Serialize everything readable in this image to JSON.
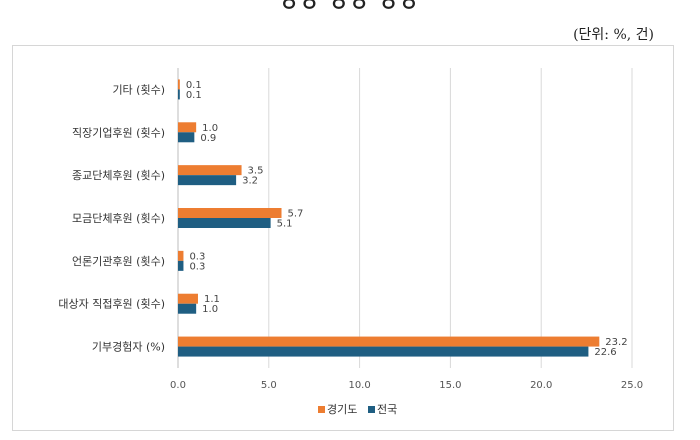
{
  "unit_label": "(단위: %, 건)",
  "colors": {
    "gyeonggi": "#ED7D31",
    "national": "#1F5E82"
  },
  "chart_data": {
    "type": "bar",
    "orientation": "horizontal",
    "title": "",
    "categories": [
      "기타 (횟수)",
      "직장기업후원 (횟수)",
      "종교단체후원 (횟수)",
      "모금단체후원 (횟수)",
      "언론기관후원 (횟수)",
      "대상자 직접후원 (횟수)",
      "기부경험자 (%)"
    ],
    "series": [
      {
        "name": "경기도",
        "values": [
          0.1,
          1.0,
          3.5,
          5.7,
          0.3,
          1.1,
          23.2
        ],
        "labels": [
          "0.1",
          "1.0",
          "3.5",
          "5.7",
          "0.3",
          "1.1",
          "23.2"
        ]
      },
      {
        "name": "전국",
        "values": [
          0.1,
          0.9,
          3.2,
          5.1,
          0.3,
          1.0,
          22.6
        ],
        "labels": [
          "0.1",
          "0.9",
          "3.2",
          "5.1",
          "0.3",
          "1.0",
          "22.6"
        ]
      }
    ],
    "xlim": [
      0,
      25
    ],
    "xticks": [
      "0.0",
      "5.0",
      "10.0",
      "15.0",
      "20.0",
      "25.0"
    ],
    "grid": true,
    "legend_position": "bottom"
  }
}
